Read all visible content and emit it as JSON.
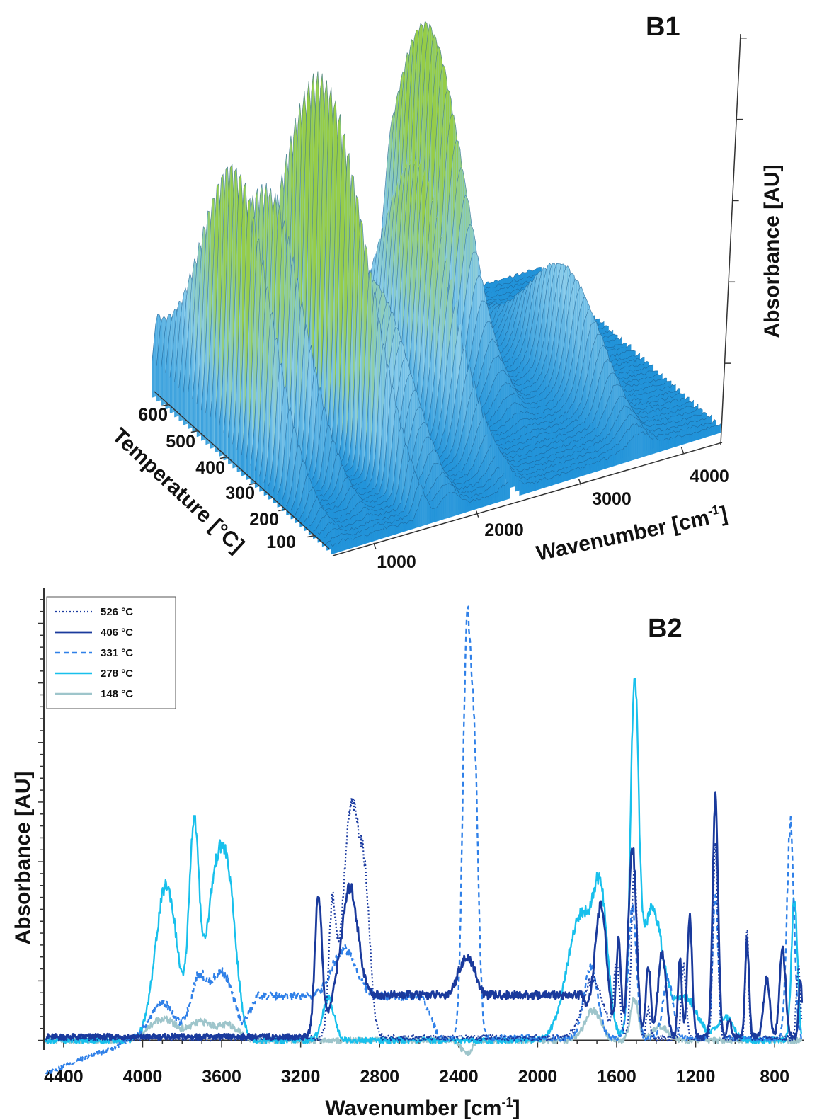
{
  "chart_data": [
    {
      "panel": "B1",
      "type": "surface3d",
      "xlabel": "Wavenumber [cm-1]",
      "xlabel_main": "Wavenumber [cm",
      "xlabel_sup": "-1",
      "xlabel_end": "]",
      "ylabel": "Temperature [°C]",
      "zlabel": "Absorbance [AU]",
      "x_ticks": [
        "1000",
        "2000",
        "3000",
        "4000"
      ],
      "y_ticks": [
        "100",
        "200",
        "300",
        "400",
        "500",
        "600"
      ],
      "z_ticks": 5,
      "xlim": [
        600,
        4400
      ],
      "ylim": [
        50,
        620
      ],
      "colors": {
        "low": "#1a8fd8",
        "mid": "#7cc8ee",
        "high": "#9acd32"
      },
      "peaks": [
        {
          "wavenumber": 720,
          "temperature": 390,
          "height": 1.0
        },
        {
          "wavenumber": 1100,
          "temperature": 410,
          "height": 0.88
        },
        {
          "wavenumber": 1500,
          "temperature": 280,
          "height": 0.62
        },
        {
          "wavenumber": 1520,
          "temperature": 420,
          "height": 0.93
        },
        {
          "wavenumber": 1760,
          "temperature": 290,
          "height": 0.58
        },
        {
          "wavenumber": 2350,
          "temperature": 340,
          "height": 0.9
        },
        {
          "wavenumber": 2930,
          "temperature": 500,
          "height": 0.64
        },
        {
          "wavenumber": 3000,
          "temperature": 520,
          "height": 0.6
        },
        {
          "wavenumber": 3600,
          "temperature": 280,
          "height": 0.38
        }
      ]
    },
    {
      "panel": "B2",
      "type": "line",
      "xlabel": "Wavenumber [cm-1]",
      "xlabel_main": "Wavenumber [cm",
      "xlabel_sup": "-1",
      "xlabel_end": "]",
      "ylabel": "Absorbance [AU]",
      "xlim": [
        4500,
        650
      ],
      "ylim": [
        -0.08,
        3.8
      ],
      "x_reversed": true,
      "x_ticks": [
        4400,
        4000,
        3600,
        3200,
        2800,
        2400,
        2000,
        1600,
        1200,
        800
      ],
      "x_tick_labels": [
        "4400",
        "4000",
        "3600",
        "3200",
        "2800",
        "2400",
        "2000",
        "1600",
        "1200",
        "800"
      ],
      "series": [
        {
          "name": "526 °C",
          "color": "#1a3aa0",
          "dash": "dot",
          "width": 2.2,
          "baseline": 0.02,
          "peaks": [
            {
              "x": 3040,
              "h": 1.0,
              "w": 18
            },
            {
              "x": 2940,
              "h": 1.95,
              "w": 45
            },
            {
              "x": 2870,
              "h": 0.8,
              "w": 25
            },
            {
              "x": 1720,
              "h": 0.5,
              "w": 50
            },
            {
              "x": 1600,
              "h": 0.6,
              "w": 15
            },
            {
              "x": 1510,
              "h": 1.4,
              "w": 15
            },
            {
              "x": 1440,
              "h": 0.25,
              "w": 10
            },
            {
              "x": 1260,
              "h": 0.6,
              "w": 12
            },
            {
              "x": 1100,
              "h": 1.6,
              "w": 12
            },
            {
              "x": 940,
              "h": 0.9,
              "w": 8
            },
            {
              "x": 680,
              "h": 0.6,
              "w": 10
            }
          ],
          "bumps": []
        },
        {
          "name": "406 °C",
          "color": "#1a3a9c",
          "dash": "solid",
          "width": 2.8,
          "baseline": 0.03,
          "peaks": [
            {
              "x": 3110,
              "h": 1.2,
              "w": 18
            },
            {
              "x": 2950,
              "h": 0.9,
              "w": 40
            },
            {
              "x": 2380,
              "h": 0.25,
              "w": 30
            },
            {
              "x": 2330,
              "h": 0.2,
              "w": 25
            },
            {
              "x": 1680,
              "h": 1.1,
              "w": 30
            },
            {
              "x": 1590,
              "h": 0.8,
              "w": 12
            },
            {
              "x": 1520,
              "h": 1.6,
              "w": 20
            },
            {
              "x": 1440,
              "h": 0.6,
              "w": 12
            },
            {
              "x": 1370,
              "h": 0.7,
              "w": 20
            },
            {
              "x": 1280,
              "h": 0.65,
              "w": 10
            },
            {
              "x": 1230,
              "h": 1.0,
              "w": 12
            },
            {
              "x": 1100,
              "h": 2.0,
              "w": 14
            },
            {
              "x": 1030,
              "h": 0.15,
              "w": 10
            },
            {
              "x": 940,
              "h": 0.8,
              "w": 10
            },
            {
              "x": 840,
              "h": 0.5,
              "w": 15
            },
            {
              "x": 760,
              "h": 0.75,
              "w": 15
            },
            {
              "x": 670,
              "h": 0.5,
              "w": 8
            }
          ],
          "bumps": [
            {
              "from": 3100,
              "to": 1700,
              "h": 0.35
            }
          ]
        },
        {
          "name": "331 °C",
          "color": "#2f80e8",
          "dash": "dash",
          "width": 2.4,
          "baseline": 0.02,
          "peaks": [
            {
              "x": 3900,
              "h": 0.3,
              "w": 60
            },
            {
              "x": 3720,
              "h": 0.45,
              "w": 40
            },
            {
              "x": 3600,
              "h": 0.55,
              "w": 60
            },
            {
              "x": 2980,
              "h": 0.4,
              "w": 60
            },
            {
              "x": 2360,
              "h": 3.2,
              "w": 20
            },
            {
              "x": 2320,
              "h": 2.2,
              "w": 20
            },
            {
              "x": 1730,
              "h": 0.6,
              "w": 35
            },
            {
              "x": 1520,
              "h": 1.1,
              "w": 20
            },
            {
              "x": 1340,
              "h": 0.5,
              "w": 25
            },
            {
              "x": 1100,
              "h": 1.2,
              "w": 14
            },
            {
              "x": 720,
              "h": 1.8,
              "w": 18
            }
          ],
          "bumps": [
            {
              "from": 3500,
              "to": 2500,
              "h": 0.35
            }
          ],
          "start_dip": {
            "from": 4500,
            "to": 4020,
            "depth": -0.3
          }
        },
        {
          "name": "278 °C",
          "color": "#18c0ec",
          "dash": "solid",
          "width": 2.4,
          "baseline": 0.0,
          "peaks": [
            {
              "x": 3880,
              "h": 1.3,
              "w": 55
            },
            {
              "x": 3740,
              "h": 1.7,
              "w": 25
            },
            {
              "x": 3630,
              "h": 1.3,
              "w": 50
            },
            {
              "x": 3560,
              "h": 0.9,
              "w": 40
            },
            {
              "x": 3060,
              "h": 0.35,
              "w": 30
            },
            {
              "x": 1780,
              "h": 1.05,
              "w": 70
            },
            {
              "x": 1680,
              "h": 0.95,
              "w": 35
            },
            {
              "x": 1510,
              "h": 2.8,
              "w": 20
            },
            {
              "x": 1420,
              "h": 1.1,
              "w": 55
            },
            {
              "x": 1250,
              "h": 0.35,
              "w": 60
            },
            {
              "x": 1050,
              "h": 0.2,
              "w": 40
            },
            {
              "x": 700,
              "h": 1.2,
              "w": 15
            }
          ],
          "bumps": []
        },
        {
          "name": "148 °C",
          "color": "#9ec5cb",
          "dash": "solid",
          "width": 2.4,
          "baseline": 0.0,
          "peaks": [
            {
              "x": 3900,
              "h": 0.18,
              "w": 70
            },
            {
              "x": 3700,
              "h": 0.15,
              "w": 60
            },
            {
              "x": 3560,
              "h": 0.12,
              "w": 50
            },
            {
              "x": 2360,
              "h": -0.12,
              "w": 25
            },
            {
              "x": 1720,
              "h": 0.25,
              "w": 40
            },
            {
              "x": 1510,
              "h": 0.35,
              "w": 20
            },
            {
              "x": 1380,
              "h": 0.12,
              "w": 40
            }
          ],
          "bumps": []
        }
      ]
    }
  ]
}
